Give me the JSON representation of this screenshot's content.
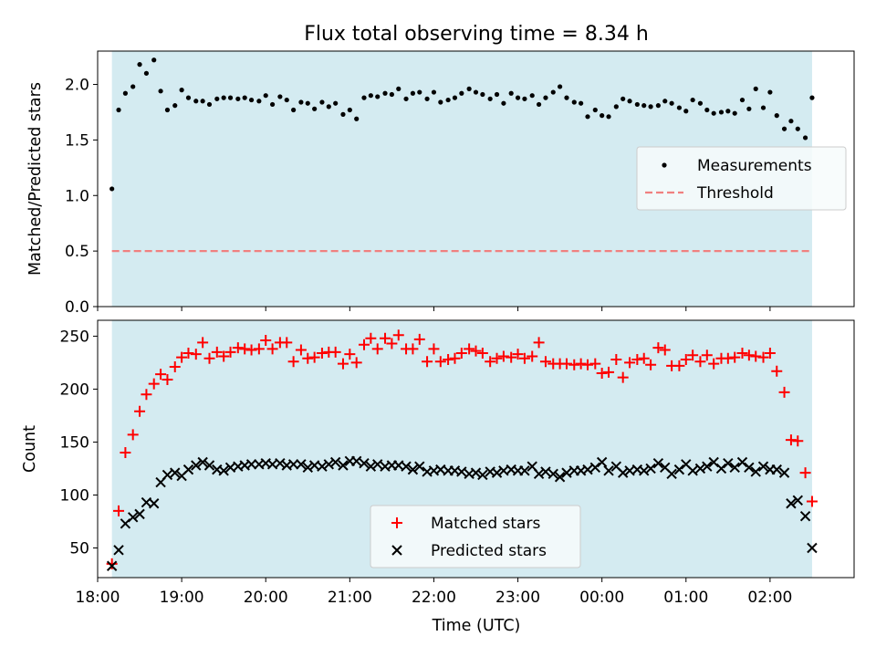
{
  "title": "Flux total observing time = 8.34 h",
  "chart_data": [
    {
      "type": "scatter",
      "panel": "top",
      "ylabel": "Matched/Predicted stars",
      "xlabel": "",
      "xlim": [
        18.0,
        27.0
      ],
      "ylim": [
        0.0,
        2.3
      ],
      "yticks": [
        0.0,
        0.5,
        1.0,
        1.5,
        2.0
      ],
      "ytick_labels": [
        "0.0",
        "0.5",
        "1.0",
        "1.5",
        "2.0"
      ],
      "shaded_span": [
        18.17,
        26.5
      ],
      "shade_color": "#d4ebf1",
      "threshold": 0.5,
      "threshold_color": "#f08080",
      "legend": {
        "placement": "center-right",
        "entries": [
          "Measurements",
          "Threshold"
        ]
      },
      "series": [
        {
          "name": "Measurements",
          "color": "#000000",
          "x": [
            18.17,
            18.25,
            18.33,
            18.42,
            18.5,
            18.58,
            18.67,
            18.75,
            18.83,
            18.92,
            19.0,
            19.08,
            19.17,
            19.25,
            19.33,
            19.42,
            19.5,
            19.58,
            19.67,
            19.75,
            19.83,
            19.92,
            20.0,
            20.08,
            20.17,
            20.25,
            20.33,
            20.42,
            20.5,
            20.58,
            20.67,
            20.75,
            20.83,
            20.92,
            21.0,
            21.08,
            21.17,
            21.25,
            21.33,
            21.42,
            21.5,
            21.58,
            21.67,
            21.75,
            21.83,
            21.92,
            22.0,
            22.08,
            22.17,
            22.25,
            22.33,
            22.42,
            22.5,
            22.58,
            22.67,
            22.75,
            22.83,
            22.92,
            23.0,
            23.08,
            23.17,
            23.25,
            23.33,
            23.42,
            23.5,
            23.58,
            23.67,
            23.75,
            23.83,
            23.92,
            24.0,
            24.08,
            24.17,
            24.25,
            24.33,
            24.42,
            24.5,
            24.58,
            24.67,
            24.75,
            24.83,
            24.92,
            25.0,
            25.08,
            25.17,
            25.25,
            25.33,
            25.42,
            25.5,
            25.58,
            25.67,
            25.75,
            25.83,
            25.92,
            26.0,
            26.08,
            26.17,
            26.25,
            26.33,
            26.42,
            26.5
          ],
          "values": [
            1.06,
            1.77,
            1.92,
            1.98,
            2.18,
            2.1,
            2.22,
            1.94,
            1.77,
            1.81,
            1.95,
            1.88,
            1.85,
            1.85,
            1.82,
            1.87,
            1.88,
            1.88,
            1.87,
            1.88,
            1.86,
            1.85,
            1.9,
            1.82,
            1.89,
            1.86,
            1.77,
            1.84,
            1.83,
            1.78,
            1.84,
            1.8,
            1.83,
            1.73,
            1.77,
            1.69,
            1.88,
            1.9,
            1.89,
            1.92,
            1.91,
            1.96,
            1.87,
            1.92,
            1.93,
            1.87,
            1.93,
            1.84,
            1.86,
            1.88,
            1.92,
            1.96,
            1.93,
            1.91,
            1.87,
            1.91,
            1.83,
            1.92,
            1.88,
            1.87,
            1.9,
            1.82,
            1.88,
            1.93,
            1.98,
            1.88,
            1.84,
            1.83,
            1.71,
            1.77,
            1.72,
            1.71,
            1.8,
            1.87,
            1.85,
            1.82,
            1.81,
            1.8,
            1.81,
            1.85,
            1.83,
            1.79,
            1.76,
            1.86,
            1.83,
            1.77,
            1.74,
            1.75,
            1.76,
            1.74,
            1.86,
            1.78,
            1.96,
            1.79,
            1.93,
            1.72,
            1.6,
            1.67,
            1.6,
            1.52,
            1.88
          ]
        }
      ]
    },
    {
      "type": "scatter",
      "panel": "bottom",
      "ylabel": "Count",
      "xlabel": "Time (UTC)",
      "xlim": [
        18.0,
        27.0
      ],
      "ylim": [
        22,
        265
      ],
      "yticks": [
        50,
        100,
        150,
        200,
        250
      ],
      "ytick_labels": [
        "50",
        "100",
        "150",
        "200",
        "250"
      ],
      "xticks": [
        18,
        19,
        20,
        21,
        22,
        23,
        24,
        25,
        26
      ],
      "xtick_labels": [
        "18:00",
        "19:00",
        "20:00",
        "21:00",
        "22:00",
        "23:00",
        "00:00",
        "01:00",
        "02:00"
      ],
      "shaded_span": [
        18.17,
        26.5
      ],
      "shade_color": "#d4ebf1",
      "legend": {
        "placement": "lower-center",
        "entries": [
          "Matched stars",
          "Predicted stars"
        ]
      },
      "series": [
        {
          "name": "Matched stars",
          "marker": "+",
          "color": "#ff0000",
          "x": [
            18.17,
            18.25,
            18.33,
            18.42,
            18.5,
            18.58,
            18.67,
            18.75,
            18.83,
            18.92,
            19.0,
            19.08,
            19.17,
            19.25,
            19.33,
            19.42,
            19.5,
            19.58,
            19.67,
            19.75,
            19.83,
            19.92,
            20.0,
            20.08,
            20.17,
            20.25,
            20.33,
            20.42,
            20.5,
            20.58,
            20.67,
            20.75,
            20.83,
            20.92,
            21.0,
            21.08,
            21.17,
            21.25,
            21.33,
            21.42,
            21.5,
            21.58,
            21.67,
            21.75,
            21.83,
            21.92,
            22.0,
            22.08,
            22.17,
            22.25,
            22.33,
            22.42,
            22.5,
            22.58,
            22.67,
            22.75,
            22.83,
            22.92,
            23.0,
            23.08,
            23.17,
            23.25,
            23.33,
            23.42,
            23.5,
            23.58,
            23.67,
            23.75,
            23.83,
            23.92,
            24.0,
            24.08,
            24.17,
            24.25,
            24.33,
            24.42,
            24.5,
            24.58,
            24.67,
            24.75,
            24.83,
            24.92,
            25.0,
            25.08,
            25.17,
            25.25,
            25.33,
            25.42,
            25.5,
            25.58,
            25.67,
            25.75,
            25.83,
            25.92,
            26.0,
            26.08,
            26.17,
            26.25,
            26.33,
            26.42,
            26.5
          ],
          "values": [
            35,
            85,
            140,
            157,
            179,
            195,
            205,
            214,
            209,
            221,
            230,
            234,
            233,
            244,
            229,
            235,
            231,
            235,
            239,
            238,
            237,
            238,
            246,
            238,
            244,
            244,
            226,
            237,
            229,
            230,
            234,
            235,
            235,
            224,
            233,
            225,
            242,
            248,
            238,
            248,
            243,
            251,
            238,
            238,
            247,
            226,
            238,
            226,
            228,
            229,
            234,
            238,
            236,
            234,
            226,
            229,
            231,
            230,
            233,
            229,
            231,
            244,
            226,
            224,
            224,
            224,
            223,
            224,
            223,
            224,
            215,
            216,
            228,
            211,
            225,
            228,
            229,
            223,
            239,
            237,
            222,
            222,
            228,
            232,
            226,
            232,
            224,
            229,
            229,
            230,
            234,
            232,
            231,
            230,
            234,
            217,
            197,
            152,
            151,
            121,
            94
          ]
        },
        {
          "name": "Predicted stars",
          "marker": "x",
          "color": "#000000",
          "x": [
            18.17,
            18.25,
            18.33,
            18.42,
            18.5,
            18.58,
            18.67,
            18.75,
            18.83,
            18.92,
            19.0,
            19.08,
            19.17,
            19.25,
            19.33,
            19.42,
            19.5,
            19.58,
            19.67,
            19.75,
            19.83,
            19.92,
            20.0,
            20.08,
            20.17,
            20.25,
            20.33,
            20.42,
            20.5,
            20.58,
            20.67,
            20.75,
            20.83,
            20.92,
            21.0,
            21.08,
            21.17,
            21.25,
            21.33,
            21.42,
            21.5,
            21.58,
            21.67,
            21.75,
            21.83,
            21.92,
            22.0,
            22.08,
            22.17,
            22.25,
            22.33,
            22.42,
            22.5,
            22.58,
            22.67,
            22.75,
            22.83,
            22.92,
            23.0,
            23.08,
            23.17,
            23.25,
            23.33,
            23.42,
            23.5,
            23.58,
            23.67,
            23.75,
            23.83,
            23.92,
            24.0,
            24.08,
            24.17,
            24.25,
            24.33,
            24.42,
            24.5,
            24.58,
            24.67,
            24.75,
            24.83,
            24.92,
            25.0,
            25.08,
            25.17,
            25.25,
            25.33,
            25.42,
            25.5,
            25.58,
            25.67,
            25.75,
            25.83,
            25.92,
            26.0,
            26.08,
            26.17,
            26.25,
            26.33,
            26.42,
            26.5
          ],
          "values": [
            33,
            48,
            73,
            79,
            82,
            93,
            92,
            112,
            119,
            121,
            118,
            124,
            128,
            131,
            128,
            124,
            123,
            126,
            127,
            128,
            129,
            129,
            130,
            129,
            130,
            128,
            129,
            129,
            126,
            128,
            127,
            129,
            131,
            128,
            132,
            132,
            130,
            127,
            129,
            127,
            128,
            128,
            127,
            124,
            127,
            122,
            123,
            124,
            123,
            123,
            122,
            120,
            121,
            119,
            122,
            121,
            123,
            124,
            123,
            123,
            127,
            120,
            122,
            120,
            117,
            121,
            123,
            123,
            124,
            126,
            131,
            123,
            127,
            121,
            123,
            124,
            123,
            125,
            130,
            126,
            120,
            124,
            129,
            123,
            125,
            127,
            131,
            125,
            130,
            126,
            131,
            126,
            122,
            127,
            124,
            124,
            121,
            92,
            95,
            80,
            50
          ]
        }
      ]
    }
  ]
}
